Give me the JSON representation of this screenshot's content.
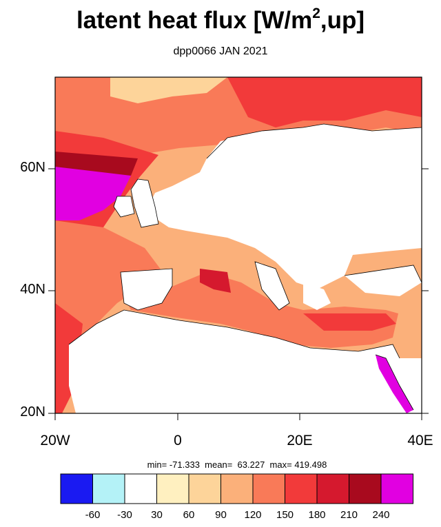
{
  "title_main": "latent heat flux [W/m",
  "title_sup": "2",
  "title_end": ",up]",
  "subtitle": "dpp0066 JAN 2021",
  "y_labels": [
    "60N",
    "40N",
    "20N"
  ],
  "x_labels": [
    "20W",
    "0",
    "20E",
    "40E"
  ],
  "stats": {
    "min_label": "min=",
    "min": "-71.333",
    "mean_label": "mean=",
    "mean": "63.227",
    "max_label": "max=",
    "max": "419.498"
  },
  "colorbar": {
    "colors": [
      "#1a1af2",
      "#b4f2f7",
      "#ffffff",
      "#fff0c0",
      "#fdd49a",
      "#fbb07a",
      "#f97a58",
      "#f23a3a",
      "#d5192e",
      "#a80a1e",
      "#e100e1"
    ],
    "labels": [
      "-60",
      "-30",
      "30",
      "60",
      "90",
      "120",
      "150",
      "180",
      "210",
      "240"
    ]
  },
  "map": {
    "projection": "cylindrical equidistant",
    "lon_range": [
      -20,
      40
    ],
    "lat_range": [
      20,
      75
    ],
    "land_color": "#ffffff",
    "coast_color": "#000000"
  }
}
